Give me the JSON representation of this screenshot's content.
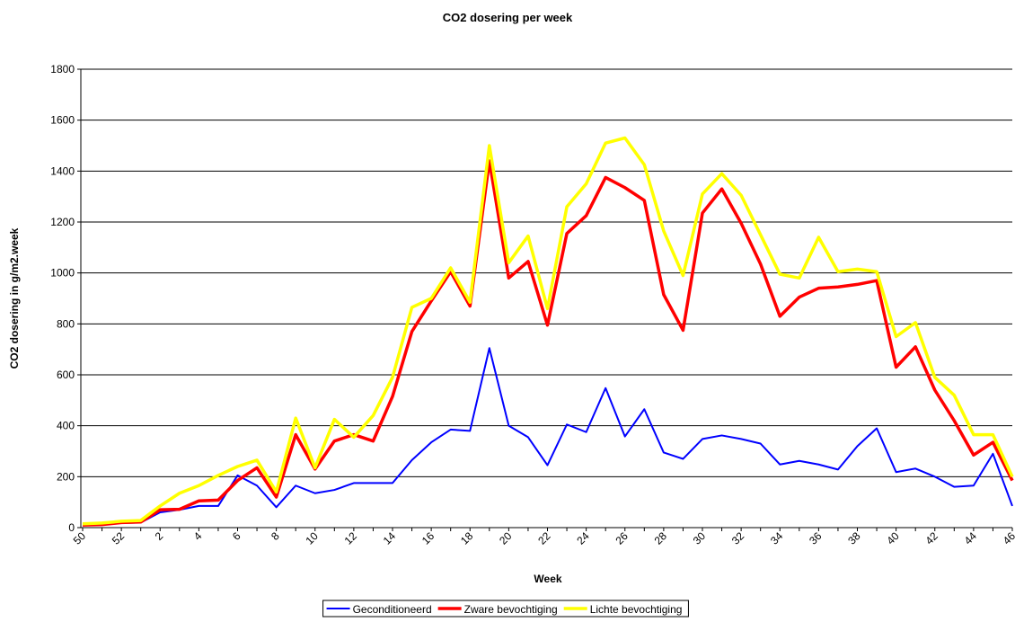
{
  "chart_data": {
    "type": "line",
    "title": "CO2 dosering per week",
    "x_label": "Week",
    "y_label": "CO2 dosering in g/m2.week",
    "categories": [
      "50",
      null,
      "52",
      null,
      "2",
      null,
      "4",
      null,
      "6",
      null,
      "8",
      null,
      "10",
      null,
      "12",
      null,
      "14",
      null,
      "16",
      null,
      "18",
      null,
      "20",
      null,
      "22",
      null,
      "24",
      null,
      "26",
      null,
      "28",
      null,
      "30",
      null,
      "32",
      null,
      "34",
      null,
      "36",
      null,
      "38",
      null,
      "40",
      null,
      "42",
      null,
      "44",
      null,
      "46"
    ],
    "ylim": [
      0,
      1800
    ],
    "yticks": [
      0,
      200,
      400,
      600,
      800,
      1000,
      1200,
      1400,
      1600,
      1800
    ],
    "grid": true,
    "legend": "bottom",
    "series": [
      {
        "name": "Geconditioneerd",
        "color": "#0000ff",
        "values": [
          10,
          12,
          18,
          20,
          60,
          70,
          85,
          85,
          205,
          165,
          80,
          165,
          135,
          148,
          175,
          175,
          175,
          265,
          335,
          385,
          380,
          705,
          400,
          355,
          245,
          405,
          375,
          548,
          358,
          465,
          295,
          270,
          348,
          362,
          348,
          330,
          248,
          262,
          248,
          228,
          320,
          390,
          218,
          232,
          200,
          160,
          165,
          290,
          85
        ]
      },
      {
        "name": "Zware bevochtiging",
        "color": "#ff0000",
        "values": [
          10,
          12,
          20,
          22,
          70,
          72,
          105,
          108,
          185,
          235,
          120,
          365,
          230,
          340,
          365,
          340,
          515,
          770,
          890,
          1005,
          870,
          1440,
          980,
          1045,
          795,
          1155,
          1225,
          1375,
          1335,
          1285,
          915,
          775,
          1235,
          1330,
          1195,
          1035,
          830,
          905,
          940,
          945,
          955,
          970,
          630,
          710,
          540,
          420,
          285,
          335,
          185
        ]
      },
      {
        "name": "Lichte bevochtiging",
        "color": "#ffff00",
        "values": [
          15,
          18,
          25,
          28,
          85,
          135,
          165,
          205,
          240,
          265,
          140,
          430,
          235,
          425,
          355,
          440,
          590,
          865,
          900,
          1020,
          885,
          1500,
          1040,
          1145,
          860,
          1260,
          1350,
          1510,
          1530,
          1425,
          1165,
          990,
          1310,
          1390,
          1305,
          1150,
          995,
          980,
          1140,
          1005,
          1015,
          1005,
          750,
          805,
          590,
          520,
          365,
          365,
          200
        ]
      }
    ]
  }
}
